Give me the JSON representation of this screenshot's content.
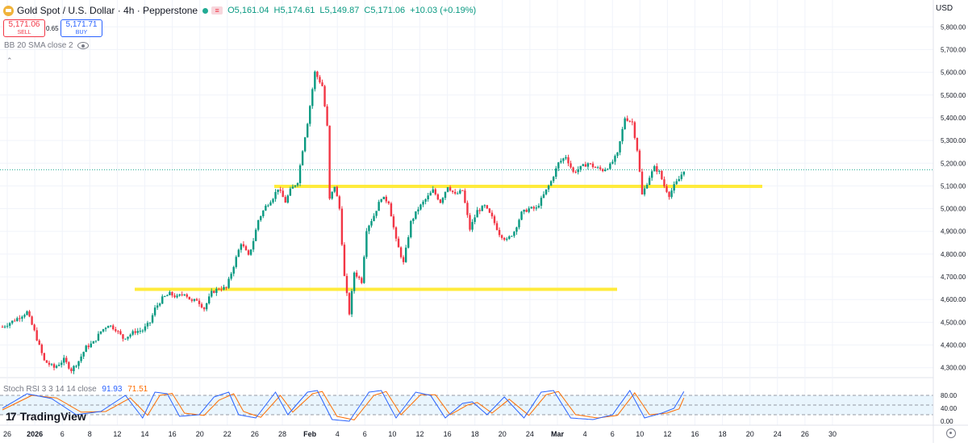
{
  "header": {
    "title": "Gold Spot / U.S. Dollar · 4h · Pepperstone",
    "open": "O5,161.04",
    "high": "H5,174.61",
    "low": "L5,149.87",
    "close": "C5,171.06",
    "change": "+10.03 (+0.19%)"
  },
  "trade": {
    "sell_price": "5,171.06",
    "sell_label": "SELL",
    "spread": "0.65",
    "buy_price": "5,171.71",
    "buy_label": "BUY"
  },
  "indicator_legend": "BB 20 SMA close 2",
  "currency_label": "USD",
  "stoch": {
    "legend": "Stoch RSI 3 3 14 14 close",
    "k_value": "91.93",
    "d_value": "71.51",
    "levels": [
      "80.00",
      "40.00",
      "0.00"
    ],
    "k_color": "#2962ff",
    "d_color": "#ff6d00"
  },
  "brand": "TradingView",
  "colors": {
    "up": "#089981",
    "down": "#f23645",
    "level_line": "#ffeb3b",
    "grid": "#f0f3fa"
  },
  "chart_data": {
    "type": "candlestick",
    "symbol": "XAUUSD",
    "timeframe": "4h",
    "y_ticks": [
      "5,800.00",
      "5,700.00",
      "5,600.00",
      "5,500.00",
      "5,400.00",
      "5,300.00",
      "5,200.00",
      "5,100.00",
      "5,000.00",
      "4,900.00",
      "4,800.00",
      "4,700.00",
      "4,600.00",
      "4,500.00",
      "4,400.00",
      "4,300.00"
    ],
    "x_ticks": [
      "26",
      "2026",
      "6",
      "8",
      "12",
      "14",
      "16",
      "20",
      "22",
      "26",
      "28",
      "Feb",
      "4",
      "6",
      "10",
      "12",
      "16",
      "18",
      "20",
      "24",
      "Mar",
      "4",
      "6",
      "10",
      "12",
      "16",
      "18",
      "20",
      "24",
      "26",
      "30"
    ],
    "ylim": [
      4260,
      5840
    ],
    "horizontal_levels": [
      5098,
      4645
    ],
    "last_price": 5171.06,
    "close_path": [
      [
        0,
        4480
      ],
      [
        5,
        4510
      ],
      [
        10,
        4545
      ],
      [
        13,
        4460
      ],
      [
        17,
        4330
      ],
      [
        21,
        4300
      ],
      [
        25,
        4335
      ],
      [
        28,
        4290
      ],
      [
        31,
        4330
      ],
      [
        34,
        4390
      ],
      [
        37,
        4410
      ],
      [
        40,
        4460
      ],
      [
        43,
        4490
      ],
      [
        46,
        4470
      ],
      [
        49,
        4430
      ],
      [
        51,
        4440
      ],
      [
        54,
        4460
      ],
      [
        57,
        4465
      ],
      [
        60,
        4500
      ],
      [
        62,
        4560
      ],
      [
        65,
        4605
      ],
      [
        68,
        4625
      ],
      [
        71,
        4610
      ],
      [
        74,
        4630
      ],
      [
        77,
        4590
      ],
      [
        79,
        4600
      ],
      [
        82,
        4560
      ],
      [
        85,
        4630
      ],
      [
        88,
        4650
      ],
      [
        91,
        4650
      ],
      [
        94,
        4750
      ],
      [
        97,
        4850
      ],
      [
        100,
        4790
      ],
      [
        102,
        4860
      ],
      [
        104,
        4950
      ],
      [
        107,
        5010
      ],
      [
        110,
        5050
      ],
      [
        112,
        5090
      ],
      [
        115,
        5030
      ],
      [
        117,
        5080
      ],
      [
        120,
        5120
      ],
      [
        122,
        5260
      ],
      [
        124,
        5380
      ],
      [
        127,
        5600
      ],
      [
        130,
        5540
      ],
      [
        132,
        5360
      ],
      [
        133,
        5040
      ],
      [
        135,
        5100
      ],
      [
        137,
        5000
      ],
      [
        139,
        4700
      ],
      [
        141,
        4540
      ],
      [
        143,
        4720
      ],
      [
        146,
        4680
      ],
      [
        148,
        4910
      ],
      [
        151,
        4970
      ],
      [
        154,
        5050
      ],
      [
        157,
        5030
      ],
      [
        160,
        4860
      ],
      [
        163,
        4760
      ],
      [
        166,
        4940
      ],
      [
        169,
        5000
      ],
      [
        172,
        5040
      ],
      [
        175,
        5080
      ],
      [
        178,
        5030
      ],
      [
        181,
        5100
      ],
      [
        184,
        5060
      ],
      [
        187,
        5080
      ],
      [
        190,
        4910
      ],
      [
        193,
        4990
      ],
      [
        196,
        5010
      ],
      [
        199,
        4960
      ],
      [
        202,
        4890
      ],
      [
        205,
        4860
      ],
      [
        208,
        4900
      ],
      [
        211,
        4980
      ],
      [
        214,
        5000
      ],
      [
        217,
        5000
      ],
      [
        220,
        5060
      ],
      [
        223,
        5120
      ],
      [
        226,
        5200
      ],
      [
        229,
        5230
      ],
      [
        232,
        5160
      ],
      [
        235,
        5180
      ],
      [
        238,
        5200
      ],
      [
        241,
        5180
      ],
      [
        244,
        5170
      ],
      [
        247,
        5190
      ],
      [
        250,
        5240
      ],
      [
        253,
        5400
      ],
      [
        256,
        5380
      ],
      [
        258,
        5260
      ],
      [
        260,
        5060
      ],
      [
        263,
        5140
      ],
      [
        265,
        5180
      ],
      [
        267,
        5160
      ],
      [
        269,
        5100
      ],
      [
        271,
        5060
      ],
      [
        273,
        5100
      ],
      [
        275,
        5130
      ],
      [
        277,
        5171
      ]
    ],
    "stoch_k_path": [
      [
        0,
        40
      ],
      [
        10,
        85
      ],
      [
        20,
        70
      ],
      [
        30,
        20
      ],
      [
        40,
        30
      ],
      [
        50,
        80
      ],
      [
        57,
        10
      ],
      [
        62,
        90
      ],
      [
        67,
        85
      ],
      [
        72,
        15
      ],
      [
        80,
        20
      ],
      [
        86,
        75
      ],
      [
        92,
        90
      ],
      [
        96,
        20
      ],
      [
        103,
        10
      ],
      [
        111,
        90
      ],
      [
        116,
        20
      ],
      [
        124,
        90
      ],
      [
        128,
        95
      ],
      [
        134,
        5
      ],
      [
        141,
        0
      ],
      [
        149,
        90
      ],
      [
        154,
        95
      ],
      [
        160,
        10
      ],
      [
        168,
        90
      ],
      [
        174,
        80
      ],
      [
        180,
        10
      ],
      [
        187,
        55
      ],
      [
        191,
        60
      ],
      [
        197,
        20
      ],
      [
        204,
        75
      ],
      [
        212,
        10
      ],
      [
        219,
        90
      ],
      [
        224,
        95
      ],
      [
        231,
        10
      ],
      [
        240,
        5
      ],
      [
        248,
        20
      ],
      [
        255,
        95
      ],
      [
        261,
        10
      ],
      [
        268,
        25
      ],
      [
        273,
        40
      ],
      [
        277,
        92
      ]
    ],
    "stoch_d_path": [
      [
        0,
        35
      ],
      [
        12,
        80
      ],
      [
        22,
        72
      ],
      [
        32,
        28
      ],
      [
        42,
        30
      ],
      [
        52,
        72
      ],
      [
        59,
        18
      ],
      [
        64,
        80
      ],
      [
        69,
        86
      ],
      [
        74,
        25
      ],
      [
        82,
        18
      ],
      [
        88,
        65
      ],
      [
        94,
        85
      ],
      [
        98,
        30
      ],
      [
        105,
        12
      ],
      [
        113,
        80
      ],
      [
        118,
        28
      ],
      [
        126,
        85
      ],
      [
        130,
        92
      ],
      [
        136,
        15
      ],
      [
        143,
        4
      ],
      [
        151,
        80
      ],
      [
        156,
        92
      ],
      [
        162,
        20
      ],
      [
        170,
        82
      ],
      [
        176,
        82
      ],
      [
        182,
        20
      ],
      [
        189,
        50
      ],
      [
        193,
        58
      ],
      [
        199,
        25
      ],
      [
        206,
        68
      ],
      [
        214,
        18
      ],
      [
        221,
        82
      ],
      [
        226,
        92
      ],
      [
        233,
        20
      ],
      [
        242,
        10
      ],
      [
        250,
        18
      ],
      [
        257,
        88
      ],
      [
        263,
        20
      ],
      [
        270,
        25
      ],
      [
        275,
        38
      ],
      [
        277,
        72
      ]
    ]
  }
}
